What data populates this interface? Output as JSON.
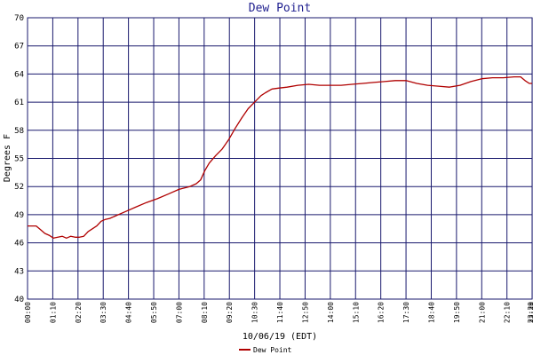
{
  "colors": {
    "background": "#ffffff",
    "grid": "#1a1a6e",
    "series": "#b00000",
    "title": "#1f1f8f",
    "text": "#000000"
  },
  "chart_data": {
    "type": "line",
    "title": "Dew Point",
    "xlabel": "10/06/19 (EDT)",
    "ylabel": "Degrees F",
    "ylim": [
      40,
      70
    ],
    "yticks": [
      40,
      43,
      46,
      49,
      52,
      55,
      58,
      61,
      64,
      67,
      70
    ],
    "xlim": [
      0,
      23.33
    ],
    "xtick_labels": [
      "00:00",
      "01:10",
      "02:20",
      "03:30",
      "04:40",
      "05:50",
      "07:00",
      "08:10",
      "09:20",
      "10:30",
      "11:40",
      "12:50",
      "14:00",
      "15:10",
      "16:20",
      "17:30",
      "18:40",
      "19:50",
      "21:00",
      "22:10",
      "23:20",
      "23:29"
    ],
    "grid": true,
    "legend": {
      "position": "bottom-center",
      "entries": [
        "Dew Point"
      ]
    },
    "series": [
      {
        "name": "Dew Point",
        "x": [
          0.0,
          0.4,
          0.6,
          0.8,
          1.0,
          1.2,
          1.4,
          1.6,
          1.8,
          2.0,
          2.2,
          2.4,
          2.6,
          2.8,
          3.0,
          3.2,
          3.4,
          3.6,
          3.8,
          4.0,
          4.5,
          5.0,
          5.5,
          6.0,
          6.5,
          7.0,
          7.5,
          7.8,
          8.0,
          8.2,
          8.4,
          8.7,
          9.0,
          9.3,
          9.6,
          9.9,
          10.2,
          10.5,
          10.8,
          11.0,
          11.3,
          11.6,
          12.0,
          12.5,
          13.0,
          13.5,
          14.0,
          14.5,
          15.0,
          15.5,
          16.0,
          16.5,
          17.0,
          17.5,
          18.0,
          18.5,
          19.0,
          19.5,
          20.0,
          20.5,
          21.0,
          21.5,
          22.0,
          22.5,
          22.8,
          23.0,
          23.2,
          23.33
        ],
        "values": [
          47.8,
          47.8,
          47.4,
          47.0,
          46.8,
          46.5,
          46.6,
          46.7,
          46.5,
          46.7,
          46.6,
          46.6,
          46.7,
          47.2,
          47.5,
          47.8,
          48.3,
          48.5,
          48.6,
          48.8,
          49.3,
          49.8,
          50.3,
          50.7,
          51.2,
          51.7,
          52.0,
          52.3,
          52.7,
          53.7,
          54.5,
          55.3,
          56.0,
          57.0,
          58.2,
          59.3,
          60.3,
          61.0,
          61.7,
          62.0,
          62.4,
          62.5,
          62.6,
          62.8,
          62.9,
          62.8,
          62.8,
          62.8,
          62.9,
          63.0,
          63.1,
          63.2,
          63.3,
          63.3,
          63.0,
          62.8,
          62.7,
          62.6,
          62.8,
          63.2,
          63.5,
          63.6,
          63.6,
          63.7,
          63.7,
          63.3,
          63.0,
          63.0
        ]
      }
    ]
  }
}
